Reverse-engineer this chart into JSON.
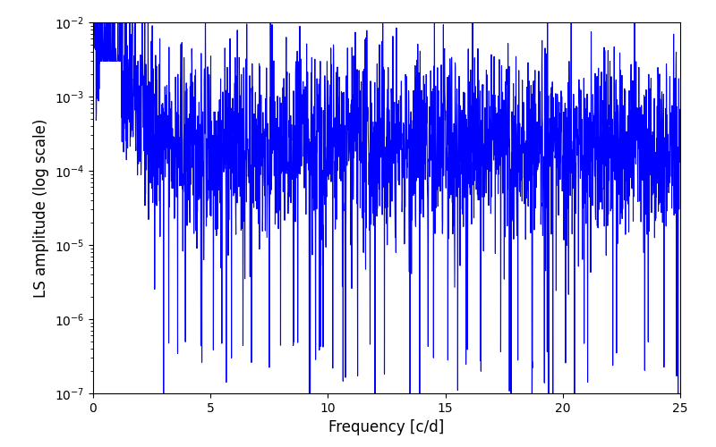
{
  "title": "",
  "xlabel": "Frequency [c/d]",
  "ylabel": "LS amplitude (log scale)",
  "xmin": 0,
  "xmax": 25,
  "ymin": 1e-07,
  "ymax": 0.01,
  "line_color": "#0000ff",
  "line_width": 0.8,
  "background_color": "#ffffff",
  "figsize": [
    8.0,
    5.0
  ],
  "dpi": 100,
  "seed": 42,
  "n_points": 2500,
  "xlabel_fontsize": 12,
  "ylabel_fontsize": 12
}
